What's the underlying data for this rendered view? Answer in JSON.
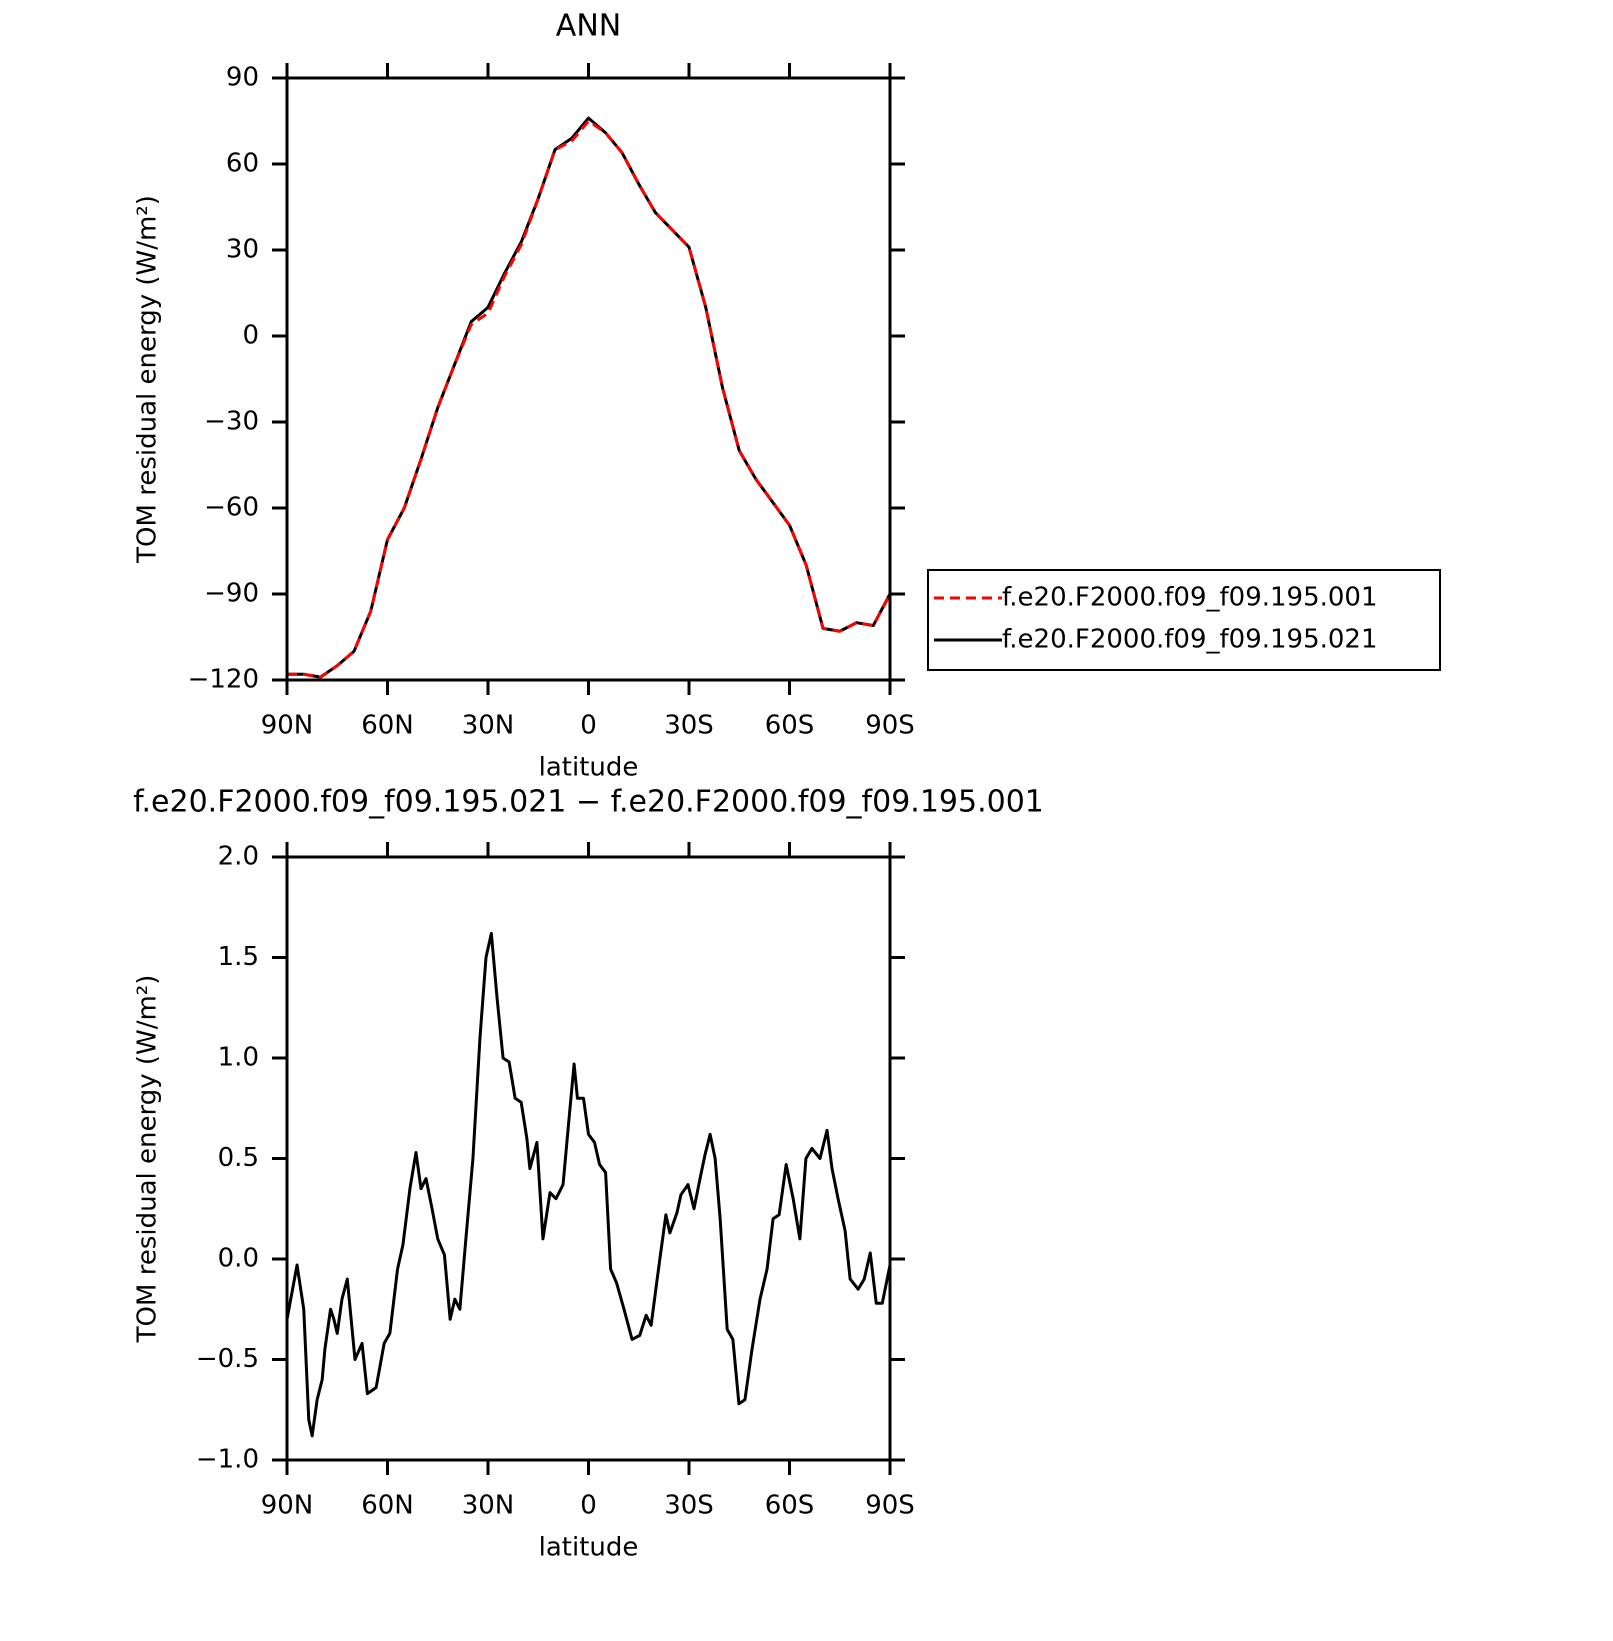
{
  "chart_data": [
    {
      "type": "line",
      "title": "ANN",
      "xlabel": "latitude",
      "ylabel": "TOM residual energy (W/m²)",
      "xlim": [
        90,
        -90
      ],
      "xticks": [
        {
          "value": 90,
          "label": "90N"
        },
        {
          "value": 60,
          "label": "60N"
        },
        {
          "value": 30,
          "label": "30N"
        },
        0,
        {
          "value": -30,
          "label": "30S"
        },
        {
          "value": -60,
          "label": "60S"
        },
        {
          "value": -90,
          "label": "90S"
        }
      ],
      "ylim": [
        -120,
        90
      ],
      "yticks": [
        {
          "value": -120,
          "label": "−120"
        },
        {
          "value": -90,
          "label": "−90"
        },
        {
          "value": -60,
          "label": "−60"
        },
        {
          "value": -30,
          "label": "−30"
        },
        0,
        30,
        60,
        90
      ],
      "legend": "right",
      "x": [
        90,
        85,
        80,
        75,
        70,
        65,
        60,
        55,
        50,
        45,
        40,
        35,
        30,
        25,
        20,
        15,
        10,
        5,
        0,
        -5,
        -10,
        -15,
        -20,
        -25,
        -30,
        -35,
        -40,
        -45,
        -50,
        -55,
        -60,
        -65,
        -70,
        -75,
        -80,
        -85,
        -90
      ],
      "series": [
        {
          "name": "f.e20.F2000.f09_f09.195.001",
          "color": "#ff0000",
          "linestyle": "dashed",
          "values": [
            -118,
            -118,
            -119,
            -115,
            -110,
            -96,
            -71,
            -60,
            -43,
            -25,
            -10,
            4,
            8,
            21,
            32,
            48,
            65,
            68,
            75,
            71,
            64,
            53,
            43,
            37,
            31,
            10,
            -18,
            -40,
            -50,
            -58,
            -66,
            -80,
            -102,
            -103,
            -100,
            -101,
            -90
          ]
        },
        {
          "name": "f.e20.F2000.f09_f09.195.021",
          "color": "#000000",
          "linestyle": "solid",
          "values": [
            -118,
            -118,
            -119,
            -115,
            -110,
            -96,
            -71,
            -60,
            -43,
            -25,
            -10,
            5,
            10,
            22,
            33,
            48,
            65,
            69,
            76,
            71,
            64,
            53,
            43,
            37,
            31,
            10,
            -18,
            -40,
            -50,
            -58,
            -66,
            -80,
            -102,
            -103,
            -100,
            -101,
            -90
          ]
        }
      ]
    },
    {
      "type": "line",
      "title": "f.e20.F2000.f09_f09.195.021 − f.e20.F2000.f09_f09.195.001",
      "xlabel": "latitude",
      "ylabel": "TOM residual energy (W/m²)",
      "xlim": [
        90,
        -90
      ],
      "xticks": [
        {
          "value": 90,
          "label": "90N"
        },
        {
          "value": 60,
          "label": "60N"
        },
        {
          "value": 30,
          "label": "30N"
        },
        0,
        {
          "value": -30,
          "label": "30S"
        },
        {
          "value": -60,
          "label": "60S"
        },
        {
          "value": -90,
          "label": "90S"
        }
      ],
      "ylim": [
        -1,
        2
      ],
      "yticks": [
        {
          "value": -1,
          "label": "−1.0"
        },
        {
          "value": -0.5,
          "label": "−0.5"
        },
        {
          "value": 0,
          "label": "0.0"
        },
        0.5,
        {
          "value": 1,
          "label": "1.0"
        },
        1.5,
        {
          "value": 2,
          "label": "2.0"
        }
      ],
      "color": "#000000",
      "x": [
        90,
        87,
        85,
        83.5,
        82.5,
        81,
        79.5,
        78.7,
        77,
        76,
        75,
        73.6,
        72,
        69.7,
        67.6,
        66,
        63.4,
        61,
        59.3,
        57,
        55.4,
        53.3,
        51.5,
        50,
        48.5,
        46.7,
        45,
        43,
        41.3,
        39.9,
        38.4,
        36.6,
        34.5,
        32.4,
        30.6,
        29,
        27.3,
        25.5,
        23.7,
        21.9,
        20.1,
        18.4,
        17.5,
        15.4,
        13.6,
        11.5,
        9.7,
        7.6,
        5.8,
        4.3,
        3.3,
        1.5,
        0,
        -1.8,
        -3.3,
        -5.1,
        -6.6,
        -8.4,
        -10.6,
        -13,
        -15.3,
        -17.2,
        -18.7,
        -20.1,
        -21.3,
        -23.1,
        -24.3,
        -26.4,
        -27.6,
        -29.7,
        -31.5,
        -33.3,
        -34.8,
        -36.3,
        -37.8,
        -39.3,
        -41.4,
        -43.1,
        -44.9,
        -46.7,
        -48.8,
        -51.2,
        -53.3,
        -55.1,
        -56.9,
        -59,
        -61.1,
        -63.1,
        -64.9,
        -66.7,
        -69.1,
        -71.2,
        -72.7,
        -74.5,
        -76.6,
        -78.1,
        -80.5,
        -82.3,
        -84.1,
        -85.9,
        -87.7,
        -90
      ],
      "values": [
        -0.3,
        -0.03,
        -0.25,
        -0.8,
        -0.88,
        -0.7,
        -0.6,
        -0.45,
        -0.25,
        -0.3,
        -0.37,
        -0.2,
        -0.1,
        -0.5,
        -0.42,
        -0.67,
        -0.64,
        -0.42,
        -0.37,
        -0.05,
        0.07,
        0.35,
        0.53,
        0.35,
        0.4,
        0.25,
        0.1,
        0.02,
        -0.3,
        -0.2,
        -0.25,
        0.1,
        0.5,
        1.1,
        1.5,
        1.62,
        1.3,
        1.0,
        0.98,
        0.8,
        0.78,
        0.6,
        0.45,
        0.58,
        0.1,
        0.33,
        0.3,
        0.37,
        0.7,
        0.97,
        0.8,
        0.8,
        0.62,
        0.58,
        0.47,
        0.43,
        -0.05,
        -0.12,
        -0.25,
        -0.4,
        -0.38,
        -0.28,
        -0.33,
        -0.15,
        0,
        0.22,
        0.13,
        0.23,
        0.32,
        0.37,
        0.25,
        0.4,
        0.52,
        0.62,
        0.5,
        0.2,
        -0.35,
        -0.4,
        -0.72,
        -0.7,
        -0.45,
        -0.2,
        -0.05,
        0.2,
        0.22,
        0.47,
        0.3,
        0.1,
        0.5,
        0.55,
        0.5,
        0.64,
        0.45,
        0.3,
        0.14,
        -0.1,
        -0.15,
        -0.1,
        0.03,
        -0.22,
        -0.22,
        -0.03
      ]
    }
  ]
}
